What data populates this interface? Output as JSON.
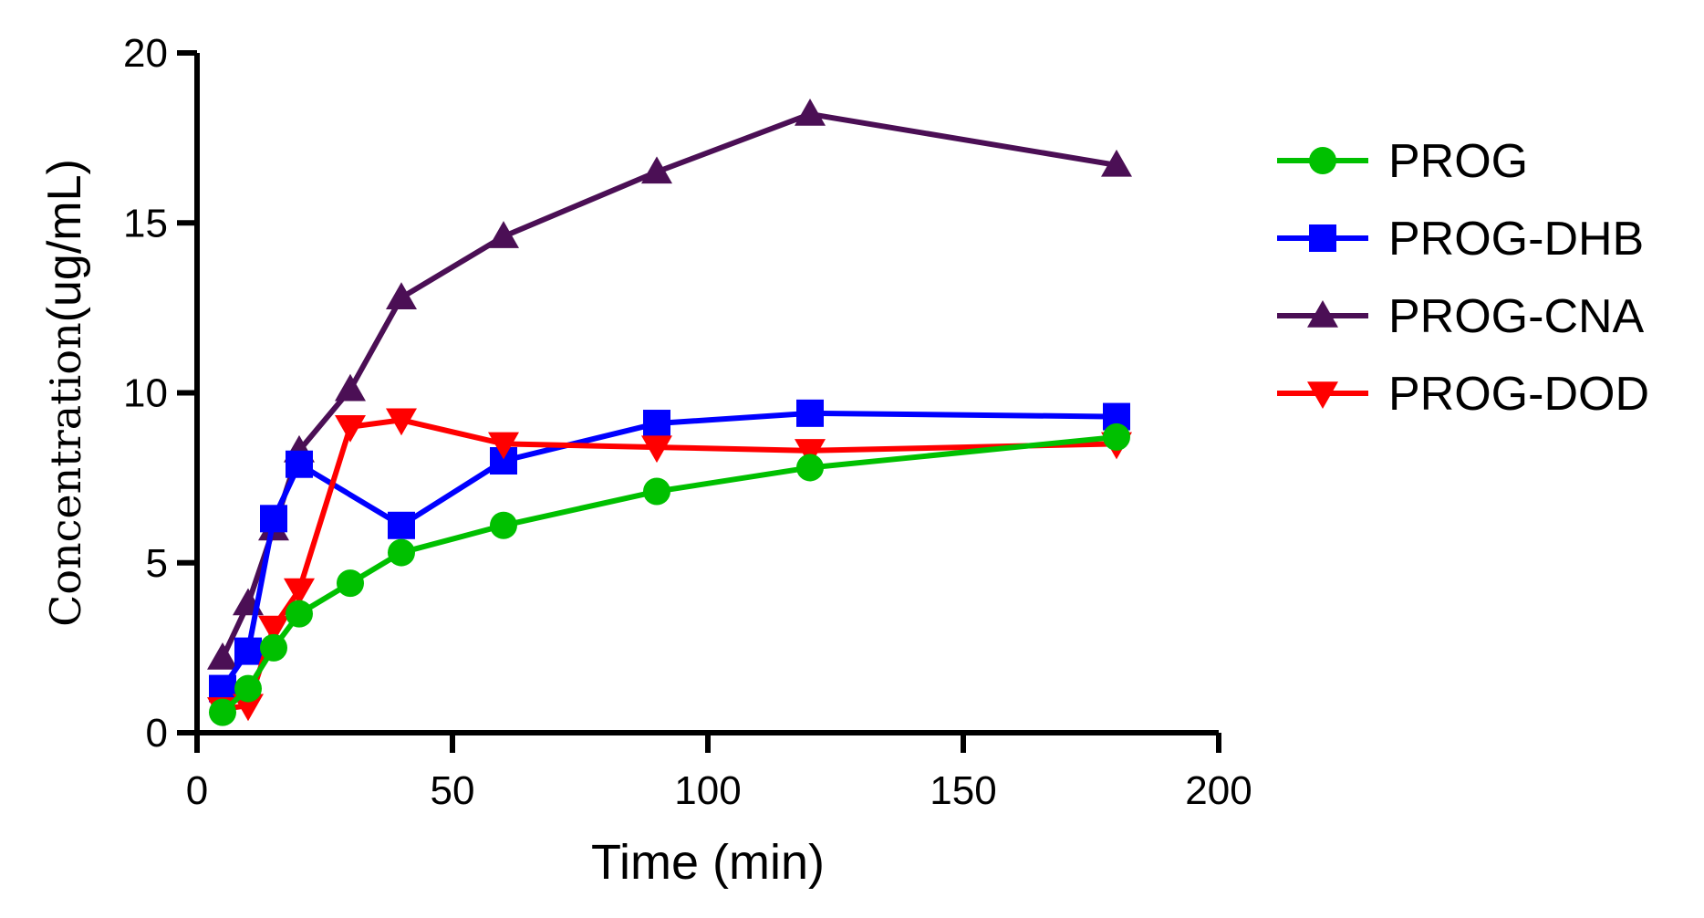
{
  "chart_data": {
    "type": "line",
    "title": "",
    "xlabel": "Time (min)",
    "ylabel_part1": "Concentration",
    "ylabel_part2": "(ug/mL)",
    "xlim": [
      0,
      200
    ],
    "ylim": [
      0,
      20
    ],
    "xticks": [
      0,
      50,
      100,
      150,
      200
    ],
    "yticks": [
      0,
      5,
      10,
      15,
      20
    ],
    "grid": false,
    "legend_position": "right",
    "x": [
      5,
      10,
      15,
      20,
      30,
      40,
      60,
      90,
      120,
      180
    ],
    "series": [
      {
        "name": "PROG",
        "color": "#00c000",
        "marker": "circle",
        "values": [
          0.6,
          1.3,
          2.5,
          3.5,
          4.4,
          5.3,
          6.1,
          7.1,
          7.8,
          8.7
        ]
      },
      {
        "name": "PROG-DHB",
        "color": "#0000ff",
        "marker": "square",
        "values": [
          1.3,
          2.4,
          6.3,
          7.9,
          null,
          6.1,
          8.0,
          9.1,
          9.4,
          9.3
        ]
      },
      {
        "name": "PROG-CNA",
        "color": "#4b0f55",
        "marker": "triangle-up",
        "values": [
          2.2,
          3.8,
          6.0,
          8.3,
          10.1,
          12.8,
          14.6,
          16.5,
          18.2,
          16.7
        ]
      },
      {
        "name": "PROG-DOD",
        "color": "#ff0000",
        "marker": "triangle-down",
        "values": [
          0.7,
          0.8,
          3.1,
          4.2,
          9.0,
          9.2,
          8.5,
          8.4,
          8.3,
          8.5
        ]
      }
    ]
  }
}
